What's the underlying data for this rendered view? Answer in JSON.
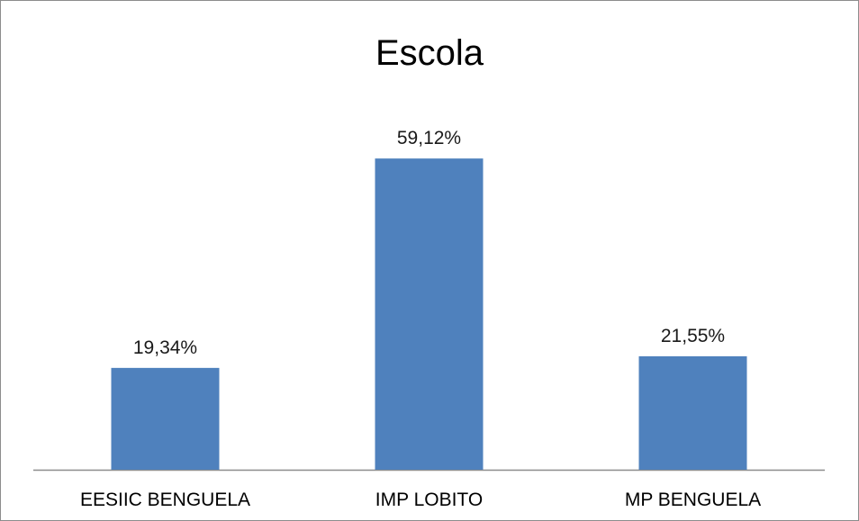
{
  "chart_data": {
    "type": "bar",
    "title": "Escola",
    "categories": [
      "EESIIC BENGUELA",
      "IMP LOBITO",
      "MP BENGUELA"
    ],
    "values": [
      19.34,
      59.12,
      21.55
    ],
    "value_labels": [
      "19,34%",
      "59,12%",
      "21,55%"
    ],
    "unit": "%",
    "ylim": [
      0,
      65
    ],
    "grid": false,
    "legend": "none",
    "colors": {
      "bar": "#4f81bd",
      "axis": "#8c8c8c",
      "frame": "#8c8c8c"
    }
  }
}
